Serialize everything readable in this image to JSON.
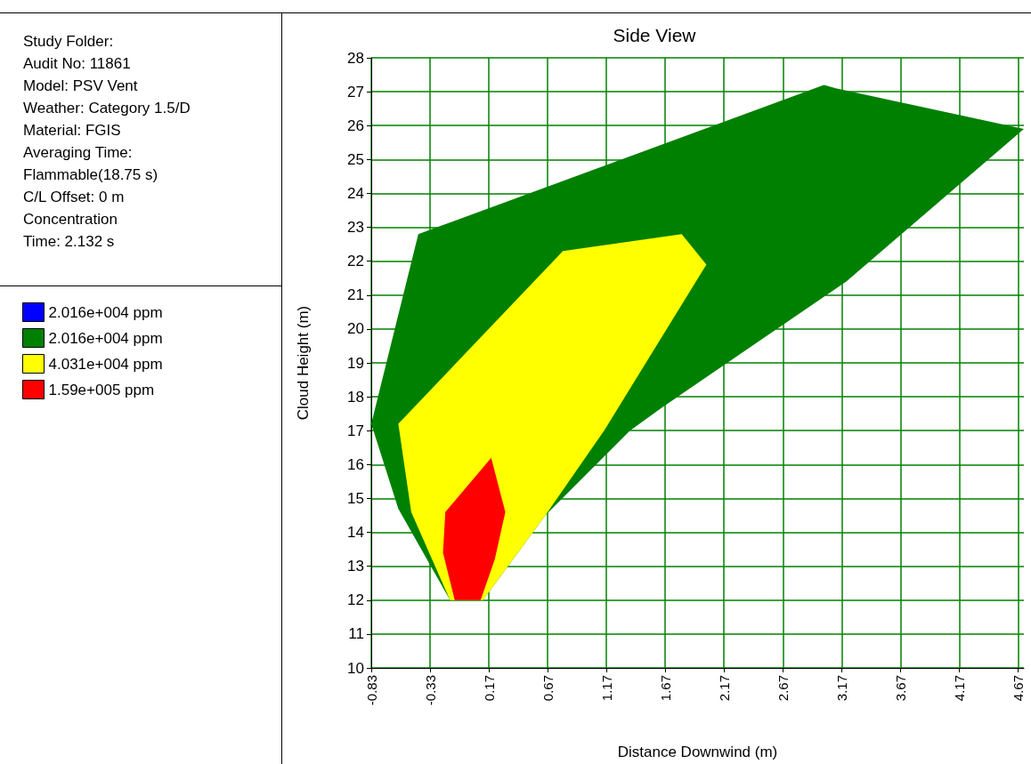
{
  "chart_data": {
    "type": "area",
    "title": "Side View",
    "xlabel": "Distance Downwind (m)",
    "ylabel": "Cloud Height (m)",
    "annotations": [
      "Study Folder:",
      "Audit No: 11861",
      "Model: PSV Vent",
      "Weather: Category 1.5/D",
      "Material: FGIS",
      "Averaging Time:",
      "Flammable(18.75 s)",
      "C/L Offset: 0 m",
      "Concentration",
      "Time: 2.132 s"
    ],
    "xlim": [
      -0.83,
      4.72
    ],
    "xticks": [
      {
        "value": -0.83,
        "label": "-0.83"
      },
      {
        "value": -0.33,
        "label": "-0.33"
      },
      {
        "value": 0.17,
        "label": "0.17"
      },
      {
        "value": 0.67,
        "label": "0.67"
      },
      {
        "value": 1.17,
        "label": "1.17"
      },
      {
        "value": 1.67,
        "label": "1.67"
      },
      {
        "value": 2.17,
        "label": "2.17"
      },
      {
        "value": 2.67,
        "label": "2.67"
      },
      {
        "value": 3.17,
        "label": "3.17"
      },
      {
        "value": 3.67,
        "label": "3.67"
      },
      {
        "value": 4.17,
        "label": "4.17"
      },
      {
        "value": 4.67,
        "label": "4.67"
      }
    ],
    "ylim": [
      10,
      28
    ],
    "yticks": [
      10,
      11,
      12,
      13,
      14,
      15,
      16,
      17,
      18,
      19,
      20,
      21,
      22,
      23,
      24,
      25,
      26,
      27,
      28
    ],
    "grid": true,
    "legend": "left",
    "series": [
      {
        "name": "2.016e+004 ppm",
        "color": "#0000ff"
      },
      {
        "name": "2.016e+004 ppm",
        "color": "#008000",
        "x": [
          -0.83,
          -0.43,
          3.02,
          3.12,
          4.72,
          3.21,
          1.65,
          1.37,
          0.65,
          0.12,
          -0.16,
          -0.6
        ],
        "values": [
          17.2,
          22.8,
          27.2,
          27.1,
          25.9,
          21.4,
          17.7,
          17,
          14.5,
          12,
          12,
          14.7
        ]
      },
      {
        "name": "4.031e+004 ppm",
        "color": "#ffff00",
        "x": [
          -0.6,
          0.8,
          1.81,
          2.02,
          1.15,
          0.65,
          0.12,
          -0.16,
          -0.49
        ],
        "values": [
          17.2,
          22.3,
          22.8,
          21.9,
          17,
          14.5,
          12,
          12,
          14.6
        ]
      },
      {
        "name": "1.59e+005 ppm",
        "color": "#ff0000",
        "x": [
          0.19,
          0.31,
          0.22,
          0.1,
          -0.12,
          -0.22,
          -0.2
        ],
        "values": [
          16.2,
          14.6,
          13.2,
          12,
          12,
          13.4,
          14.6
        ]
      }
    ]
  }
}
